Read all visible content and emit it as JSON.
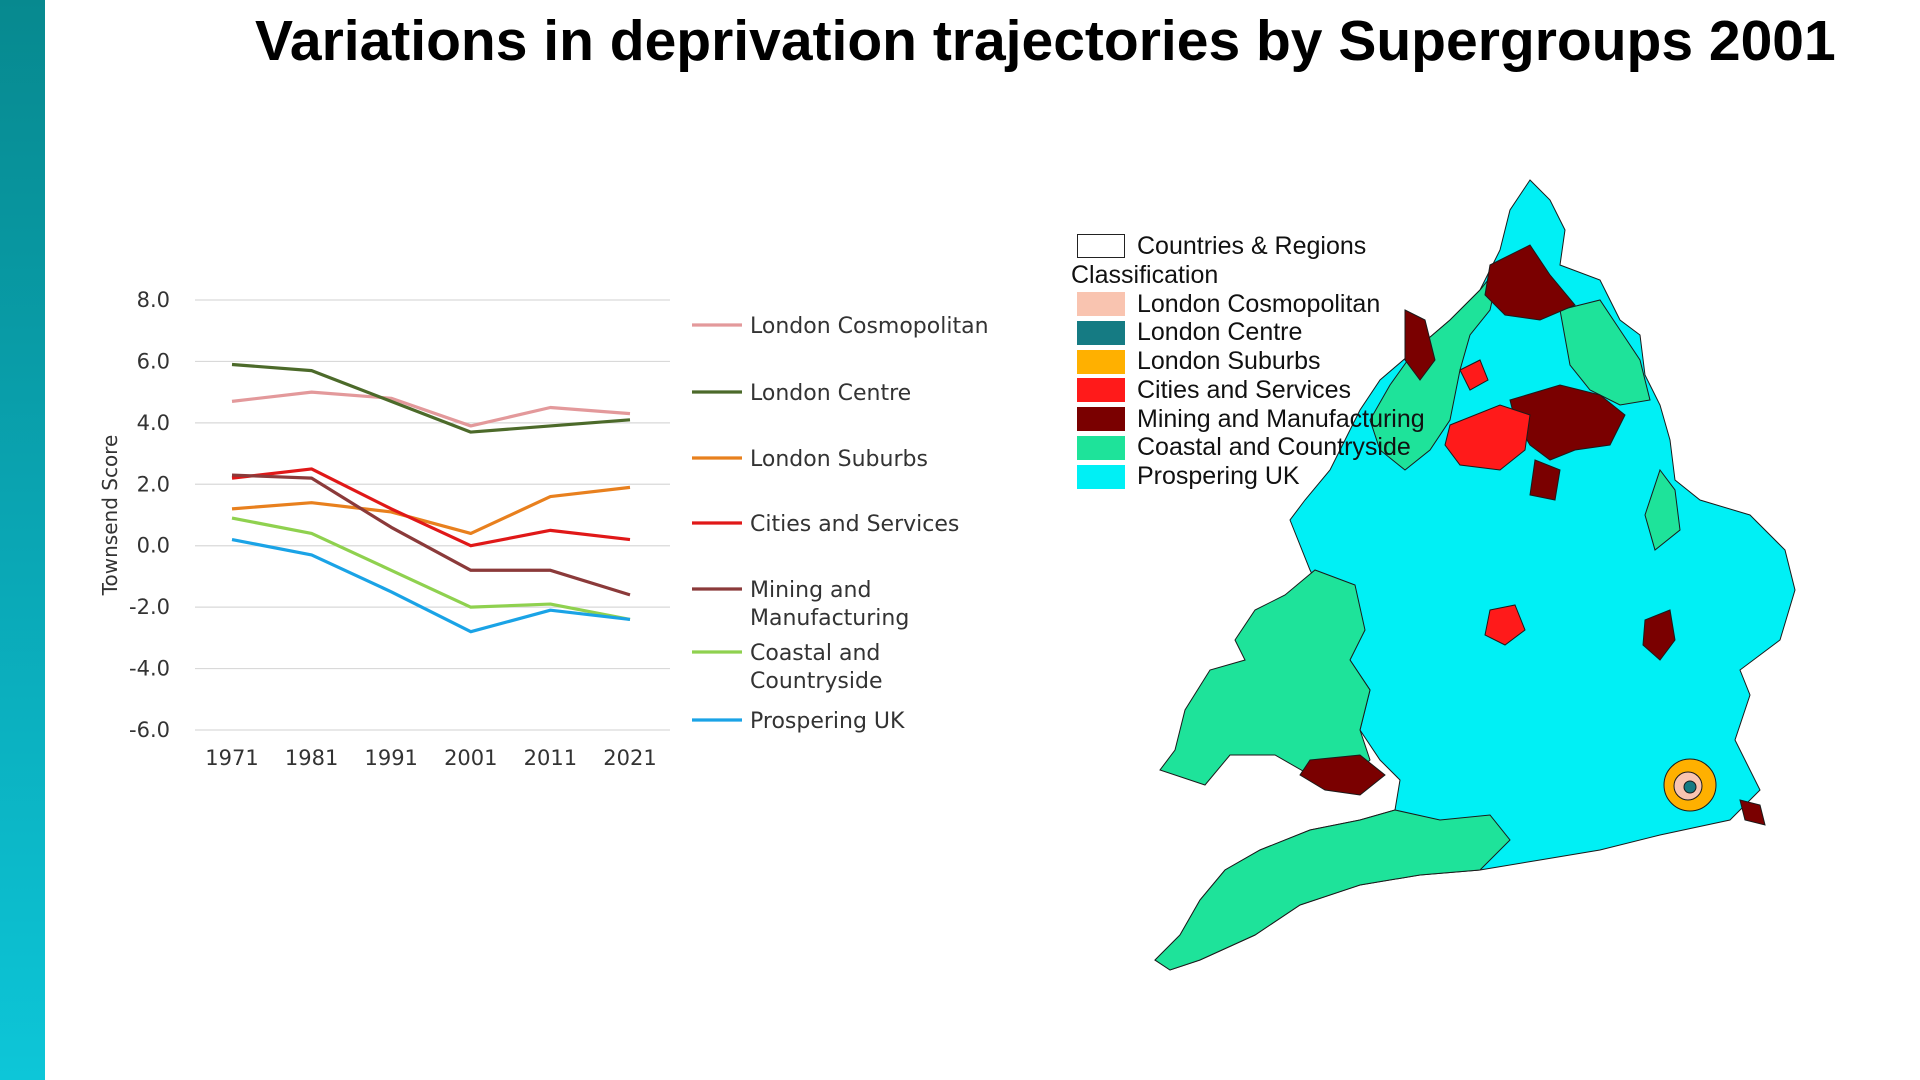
{
  "title": "Variations in deprivation trajectories by Supergroups 2001",
  "chart_data": {
    "type": "line",
    "ylabel": "Townsend Score",
    "ylim": [
      -6.0,
      8.0
    ],
    "yticks": [
      "8.0",
      "6.0",
      "4.0",
      "2.0",
      "0.0",
      "-2.0",
      "-4.0",
      "-6.0"
    ],
    "x": [
      "1971",
      "1981",
      "1991",
      "2001",
      "2011",
      "2021"
    ],
    "legend_position": "right",
    "grid": true,
    "series": [
      {
        "name": "London Cosmopolitan",
        "name_lines": [
          "London Cosmopolitan"
        ],
        "color": "#e3999b",
        "values": [
          4.7,
          5.0,
          4.8,
          3.9,
          4.5,
          4.3
        ]
      },
      {
        "name": "London Centre",
        "name_lines": [
          "London Centre"
        ],
        "color": "#4c6a2a",
        "values": [
          5.9,
          5.7,
          4.7,
          3.7,
          3.9,
          4.1
        ]
      },
      {
        "name": "London Suburbs",
        "name_lines": [
          "London Suburbs"
        ],
        "color": "#e8801e",
        "values": [
          1.2,
          1.4,
          1.1,
          0.4,
          1.6,
          1.9
        ]
      },
      {
        "name": "Cities and Services",
        "name_lines": [
          "Cities and Services"
        ],
        "color": "#e01818",
        "values": [
          2.2,
          2.5,
          1.2,
          0.0,
          0.5,
          0.2
        ]
      },
      {
        "name": "Mining and Manufacturing",
        "name_lines": [
          "Mining and",
          "Manufacturing"
        ],
        "color": "#8b3a3a",
        "values": [
          2.3,
          2.2,
          0.6,
          -0.8,
          -0.8,
          -1.6
        ]
      },
      {
        "name": "Coastal and Countryside",
        "name_lines": [
          "Coastal and",
          "Countryside"
        ],
        "color": "#8fd14f",
        "values": [
          0.9,
          0.4,
          -0.8,
          -2.0,
          -1.9,
          -2.4
        ]
      },
      {
        "name": "Prospering UK",
        "name_lines": [
          "Prospering UK"
        ],
        "color": "#1aa3e6",
        "values": [
          0.2,
          -0.3,
          -1.5,
          -2.8,
          -2.1,
          -2.4
        ]
      }
    ]
  },
  "map": {
    "legend_header": "Countries & Regions",
    "legend_subheader": "Classification",
    "outline_color": "#ffffff",
    "classes": [
      {
        "label": "London Cosmopolitan",
        "color": "#f9c4b0"
      },
      {
        "label": "London Centre",
        "color": "#157b83"
      },
      {
        "label": "London Suburbs",
        "color": "#ffb000"
      },
      {
        "label": "Cities and Services",
        "color": "#ff1a1a"
      },
      {
        "label": "Mining and Manufacturing",
        "color": "#7a0000"
      },
      {
        "label": "Coastal and Countryside",
        "color": "#1ee39a"
      },
      {
        "label": "Prospering UK",
        "color": "#00f0f5"
      }
    ]
  }
}
